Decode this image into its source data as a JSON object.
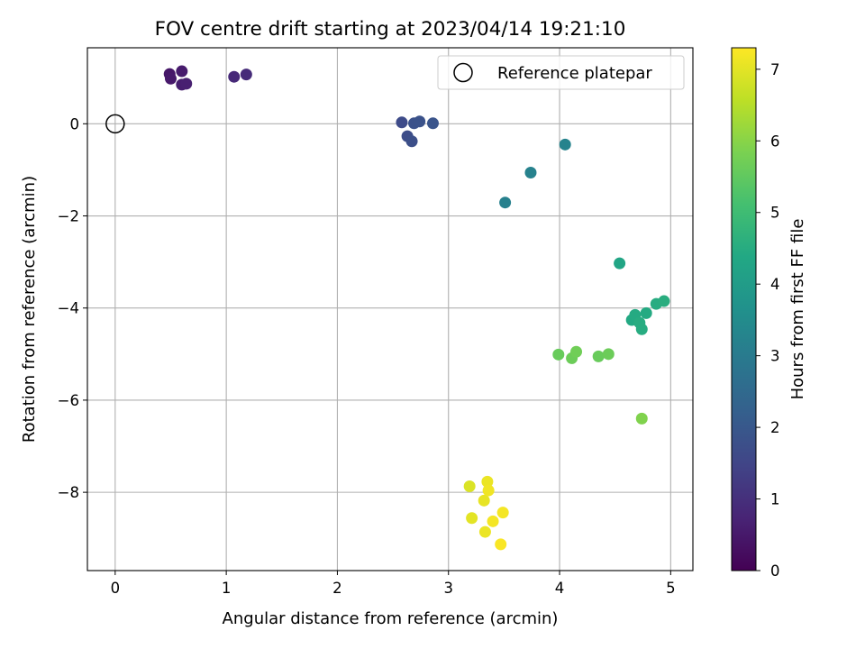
{
  "chart_data": {
    "type": "scatter",
    "title": "FOV centre drift starting at 2023/04/14 19:21:10",
    "xlabel": "Angular distance from reference (arcmin)",
    "ylabel": "Rotation from reference (arcmin)",
    "xlim": [
      -0.25,
      5.2
    ],
    "ylim": [
      -9.7,
      1.65
    ],
    "x_ticks": [
      0,
      1,
      2,
      3,
      4,
      5
    ],
    "y_ticks": [
      -8,
      -6,
      -4,
      -2,
      0
    ],
    "grid": true,
    "colormap": "viridis",
    "colorbar": {
      "label": "Hours from first FF file",
      "range": [
        0,
        7.3
      ],
      "ticks": [
        0,
        1,
        2,
        3,
        4,
        5,
        6,
        7
      ]
    },
    "legend": {
      "position": "top-right",
      "entries": [
        "Reference platepar"
      ]
    },
    "reference_point": {
      "x": 0,
      "y": 0,
      "label": "Reference platepar"
    },
    "series": [
      {
        "points": [
          {
            "x": 0.49,
            "y": 1.08,
            "hours": 0.45
          },
          {
            "x": 0.5,
            "y": 0.98,
            "hours": 0.5
          },
          {
            "x": 0.6,
            "y": 1.14,
            "hours": 0.55
          },
          {
            "x": 0.6,
            "y": 0.85,
            "hours": 0.6
          },
          {
            "x": 0.64,
            "y": 0.87,
            "hours": 0.65
          },
          {
            "x": 1.07,
            "y": 1.02,
            "hours": 0.85
          },
          {
            "x": 1.18,
            "y": 1.07,
            "hours": 0.9
          },
          {
            "x": 2.58,
            "y": 0.03,
            "hours": 1.65
          },
          {
            "x": 2.63,
            "y": -0.27,
            "hours": 1.7
          },
          {
            "x": 2.67,
            "y": -0.38,
            "hours": 1.75
          },
          {
            "x": 2.69,
            "y": 0.01,
            "hours": 1.8
          },
          {
            "x": 2.74,
            "y": 0.05,
            "hours": 1.85
          },
          {
            "x": 2.86,
            "y": 0.01,
            "hours": 1.9
          },
          {
            "x": 3.51,
            "y": -1.71,
            "hours": 3.15
          },
          {
            "x": 3.74,
            "y": -1.06,
            "hours": 3.2
          },
          {
            "x": 4.05,
            "y": -0.45,
            "hours": 3.25
          },
          {
            "x": 4.54,
            "y": -3.03,
            "hours": 4.3
          },
          {
            "x": 4.65,
            "y": -4.26,
            "hours": 4.4
          },
          {
            "x": 4.68,
            "y": -4.15,
            "hours": 4.45
          },
          {
            "x": 4.72,
            "y": -4.32,
            "hours": 4.5
          },
          {
            "x": 4.74,
            "y": -4.46,
            "hours": 4.5
          },
          {
            "x": 4.78,
            "y": -4.11,
            "hours": 4.45
          },
          {
            "x": 4.87,
            "y": -3.91,
            "hours": 4.5
          },
          {
            "x": 4.94,
            "y": -3.85,
            "hours": 4.55
          },
          {
            "x": 3.99,
            "y": -5.01,
            "hours": 5.6
          },
          {
            "x": 4.11,
            "y": -5.09,
            "hours": 5.65
          },
          {
            "x": 4.15,
            "y": -4.95,
            "hours": 5.7
          },
          {
            "x": 4.35,
            "y": -5.05,
            "hours": 5.6
          },
          {
            "x": 4.44,
            "y": -5.0,
            "hours": 5.65
          },
          {
            "x": 4.74,
            "y": -6.4,
            "hours": 5.9
          },
          {
            "x": 3.19,
            "y": -7.87,
            "hours": 6.9
          },
          {
            "x": 3.21,
            "y": -8.56,
            "hours": 7.0
          },
          {
            "x": 3.32,
            "y": -8.18,
            "hours": 7.05
          },
          {
            "x": 3.33,
            "y": -8.86,
            "hours": 7.1
          },
          {
            "x": 3.35,
            "y": -7.77,
            "hours": 7.1
          },
          {
            "x": 3.36,
            "y": -7.96,
            "hours": 7.15
          },
          {
            "x": 3.4,
            "y": -8.63,
            "hours": 7.2
          },
          {
            "x": 3.47,
            "y": -9.13,
            "hours": 7.25
          },
          {
            "x": 3.49,
            "y": -8.44,
            "hours": 7.2
          }
        ]
      }
    ]
  }
}
